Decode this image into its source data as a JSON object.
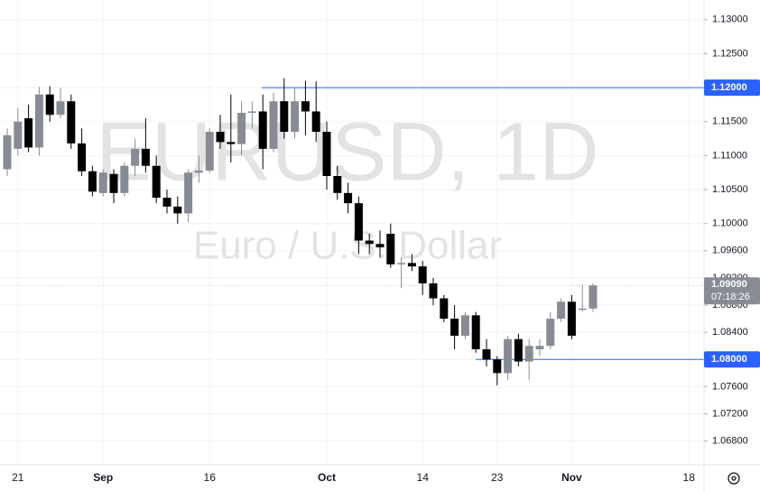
{
  "chart_data": {
    "type": "candlestick",
    "title": "EURUSD, 1D",
    "subtitle": "Euro / U.S. Dollar",
    "categories": [
      null,
      "21",
      null,
      null,
      null,
      null,
      null,
      null,
      null,
      "Sep",
      null,
      null,
      null,
      null,
      null,
      null,
      null,
      null,
      null,
      "16",
      null,
      null,
      null,
      null,
      null,
      null,
      null,
      null,
      null,
      null,
      "Oct",
      null,
      null,
      null,
      null,
      null,
      null,
      null,
      null,
      "14",
      null,
      null,
      null,
      null,
      null,
      null,
      "23",
      null,
      null,
      null,
      null,
      null,
      null,
      "Nov",
      null,
      null,
      null,
      null,
      null,
      null,
      null,
      null,
      null,
      null,
      "18"
    ],
    "open": [
      1.108,
      1.111,
      1.1155,
      1.1112,
      1.119,
      1.116,
      1.118,
      1.1118,
      1.1077,
      1.1045,
      1.1073,
      1.1045,
      1.1085,
      1.111,
      1.1085,
      1.1038,
      1.1025,
      1.1015,
      1.1075,
      1.1078,
      1.1135,
      1.112,
      1.1117,
      1.1163,
      1.1165,
      1.111,
      1.118,
      1.1135,
      1.118,
      1.1165,
      1.1135,
      1.107,
      1.1045,
      1.103,
      1.0975,
      1.097,
      1.0985,
      1.094,
      1.0942,
      1.0937,
      1.0912,
      1.089,
      1.086,
      1.0835,
      1.0865,
      1.0815,
      1.08,
      1.078,
      1.083,
      1.0797,
      1.0815,
      1.082,
      1.086,
      1.0885,
      1.0873,
      1.0875,
      null,
      null,
      null,
      null,
      null,
      null,
      null,
      null,
      null
    ],
    "high": [
      1.114,
      1.117,
      1.1175,
      1.1201,
      1.1202,
      1.12,
      1.119,
      1.114,
      1.1085,
      1.108,
      1.108,
      1.109,
      1.1125,
      1.1155,
      1.11,
      1.105,
      1.104,
      1.108,
      1.11,
      1.114,
      1.116,
      1.119,
      1.118,
      1.118,
      1.119,
      1.1192,
      1.1214,
      1.12,
      1.121,
      1.1209,
      1.115,
      1.1085,
      1.106,
      1.104,
      1.0985,
      1.099,
      1.1,
      1.095,
      1.0955,
      1.0945,
      1.092,
      1.0895,
      1.088,
      1.087,
      1.087,
      1.083,
      1.0805,
      1.0835,
      1.0838,
      1.083,
      1.083,
      1.087,
      1.089,
      1.0895,
      1.091,
      1.0912,
      null,
      null,
      null,
      null,
      null,
      null,
      null,
      null,
      null
    ],
    "low": [
      1.107,
      1.11,
      1.1105,
      1.11,
      1.115,
      1.1155,
      1.111,
      1.107,
      1.104,
      1.104,
      1.103,
      1.104,
      1.107,
      1.1075,
      1.103,
      1.1015,
      1.1,
      1.1002,
      1.106,
      1.1075,
      1.111,
      1.109,
      1.11,
      1.114,
      1.108,
      1.1105,
      1.1125,
      1.1125,
      1.113,
      1.112,
      1.105,
      1.1035,
      1.1015,
      1.0955,
      1.0955,
      1.095,
      1.0935,
      1.0905,
      1.093,
      1.0895,
      1.088,
      1.0855,
      1.0815,
      1.083,
      1.081,
      1.079,
      1.0762,
      1.077,
      1.079,
      1.077,
      1.0805,
      1.0815,
      1.0855,
      1.083,
      1.087,
      1.087,
      null,
      null,
      null,
      null,
      null,
      null,
      null,
      null,
      null
    ],
    "close": [
      1.113,
      1.115,
      1.1112,
      1.119,
      1.116,
      1.118,
      1.1118,
      1.1077,
      1.1047,
      1.1075,
      1.1045,
      1.1085,
      1.111,
      1.1085,
      1.1038,
      1.1025,
      1.1015,
      1.1075,
      1.1078,
      1.1135,
      1.112,
      1.1117,
      1.1163,
      1.1165,
      1.111,
      1.118,
      1.1135,
      1.118,
      1.1165,
      1.1135,
      1.107,
      1.1045,
      1.103,
      1.0975,
      1.097,
      1.0965,
      1.094,
      1.0942,
      1.0937,
      1.0912,
      1.089,
      1.086,
      1.0835,
      1.0865,
      1.0815,
      1.08,
      1.078,
      1.083,
      1.0797,
      1.082,
      1.082,
      1.086,
      1.0885,
      1.0835,
      1.0875,
      1.0909,
      null,
      null,
      null,
      null,
      null,
      null,
      null,
      null,
      null
    ],
    "up_color": "#878b94",
    "down_color": "#000000",
    "ylim": [
      1.0645,
      1.1329
    ],
    "yticks": [
      {
        "value": 1.068,
        "label": "1.06800"
      },
      {
        "value": 1.072,
        "label": "1.07200"
      },
      {
        "value": 1.076,
        "label": "1.07600"
      },
      {
        "value": 1.08,
        "label": "1.08000"
      },
      {
        "value": 1.084,
        "label": "1.08400"
      },
      {
        "value": 1.088,
        "label": "1.08800"
      },
      {
        "value": 1.092,
        "label": "1.09200"
      },
      {
        "value": 1.096,
        "label": "1.09600"
      },
      {
        "value": 1.1,
        "label": "1.10000"
      },
      {
        "value": 1.105,
        "label": "1.10500"
      },
      {
        "value": 1.11,
        "label": "1.11000"
      },
      {
        "value": 1.115,
        "label": "1.11500"
      },
      {
        "value": 1.12,
        "label": "1.12000"
      },
      {
        "value": 1.125,
        "label": "1.12500"
      },
      {
        "value": 1.13,
        "label": "1.13000"
      }
    ],
    "grid": true,
    "hlines": [
      {
        "value": 1.12,
        "label": "1.12000",
        "color": "#2962ff"
      },
      {
        "value": 1.08,
        "label": "1.08000",
        "color": "#2962ff"
      }
    ],
    "last_price": {
      "value": 1.0909,
      "label": "1.09090",
      "countdown": "07:18:26",
      "color": "#878b94"
    }
  }
}
